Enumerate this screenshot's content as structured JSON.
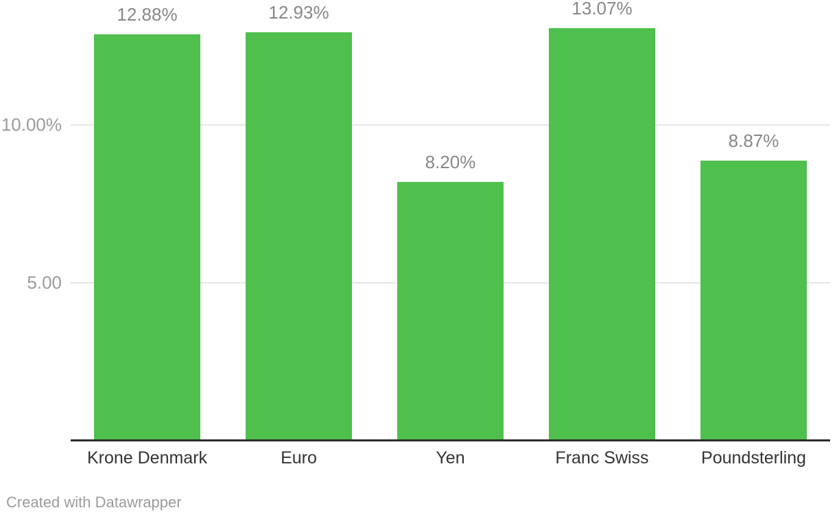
{
  "chart_data": {
    "type": "bar",
    "categories": [
      "Krone Denmark",
      "Euro",
      "Yen",
      "Franc Swiss",
      "Poundsterling"
    ],
    "values": [
      12.88,
      12.93,
      8.2,
      13.07,
      8.87
    ],
    "value_labels": [
      "12.88%",
      "12.93%",
      "8.20%",
      "13.07%",
      "8.87%"
    ],
    "y_ticks": [
      {
        "value": 10,
        "label": "10.00%"
      },
      {
        "value": 5,
        "label": "5.00"
      }
    ],
    "ylim": [
      0,
      13.5
    ],
    "grid": true,
    "legend_position": "none",
    "title": "",
    "xlabel": "",
    "ylabel": ""
  },
  "colors": {
    "bar": "#4FC04D",
    "value_label": "#878787",
    "tick_label": "#9b9b9b",
    "category_label": "#333333",
    "gridline": "#e6e6e6",
    "axis_line": "#2b2b2b",
    "background": "#ffffff",
    "footer_text": "#9b9b9b"
  },
  "attribution": {
    "text": "Created with Datawrapper"
  }
}
